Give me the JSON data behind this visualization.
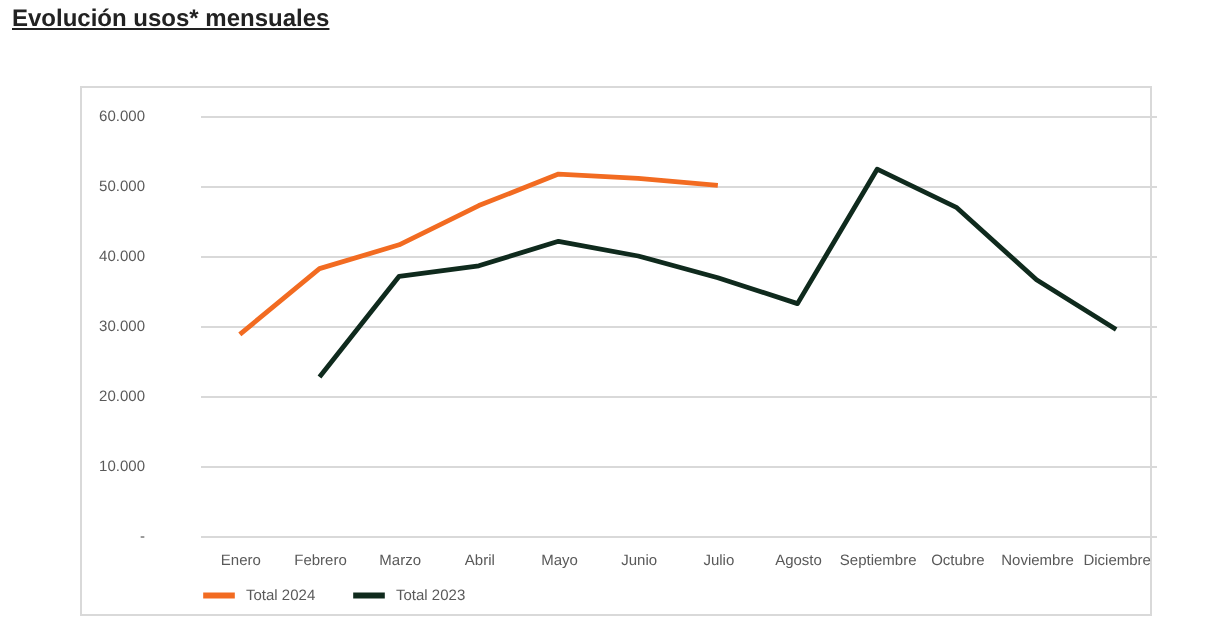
{
  "chart_data": {
    "type": "line",
    "title": "Evolución usos* mensuales",
    "categories": [
      "Enero",
      "Febrero",
      "Marzo",
      "Abril",
      "Mayo",
      "Junio",
      "Julio",
      "Agosto",
      "Septiembre",
      "Octubre",
      "Noviembre",
      "Diciembre"
    ],
    "series": [
      {
        "name": "Total 2024",
        "color": "#f26b21",
        "values": [
          28800,
          38200,
          41600,
          47200,
          51700,
          51100,
          50100,
          null,
          null,
          null,
          null,
          null
        ]
      },
      {
        "name": "Total 2023",
        "color": "#0f2a1d",
        "values": [
          null,
          22700,
          37100,
          38600,
          42100,
          40000,
          36900,
          33200,
          52400,
          46900,
          36600,
          29500
        ]
      }
    ],
    "ylim": [
      0,
      60000
    ],
    "yticks": [
      {
        "value": 0,
        "label": "-"
      },
      {
        "value": 10000,
        "label": "10.000"
      },
      {
        "value": 20000,
        "label": "20.000"
      },
      {
        "value": 30000,
        "label": "30.000"
      },
      {
        "value": 40000,
        "label": "40.000"
      },
      {
        "value": 50000,
        "label": "50.000"
      },
      {
        "value": 60000,
        "label": "60.000"
      }
    ],
    "grid": "y",
    "legend": "bottom",
    "line_style": "solid",
    "marker": "none"
  }
}
